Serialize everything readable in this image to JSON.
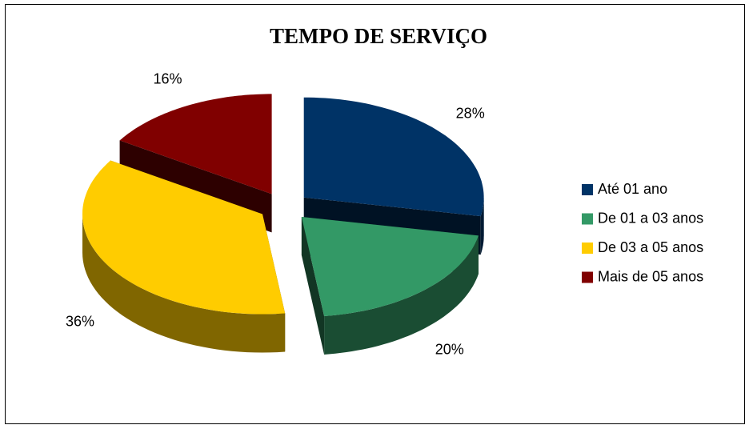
{
  "chart_data": {
    "type": "pie3d",
    "title": "TEMPO DE SERVIÇO",
    "categories": [
      "Até 01 ano",
      "De 01 a 03 anos",
      "De 03 a 05 anos",
      "Mais de 05 anos"
    ],
    "values": [
      28,
      20,
      36,
      16
    ],
    "value_labels": [
      "28%",
      "20%",
      "36%",
      "16%"
    ],
    "colors": [
      "#003366",
      "#339966",
      "#ffcc00",
      "#800000"
    ],
    "legend": "right"
  }
}
